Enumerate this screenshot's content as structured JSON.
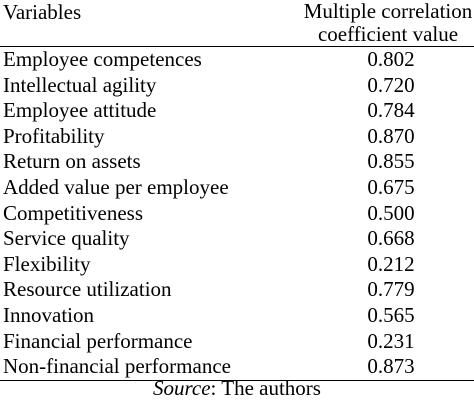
{
  "table": {
    "headers": {
      "variable": "Variables",
      "value_line1": "Multiple correlation",
      "value_line2": "coefficient value"
    },
    "rows": [
      {
        "variable": "Employee competences",
        "value": "0.802"
      },
      {
        "variable": "Intellectual agility",
        "value": "0.720"
      },
      {
        "variable": "Employee attitude",
        "value": "0.784"
      },
      {
        "variable": "Profitability",
        "value": "0.870"
      },
      {
        "variable": "Return on assets",
        "value": "0.855"
      },
      {
        "variable": "Added value per employee",
        "value": "0.675"
      },
      {
        "variable": "Competitiveness",
        "value": "0.500"
      },
      {
        "variable": "Service quality",
        "value": "0.668"
      },
      {
        "variable": "Flexibility",
        "value": "0.212"
      },
      {
        "variable": "Resource utilization",
        "value": "0.779"
      },
      {
        "variable": "Innovation",
        "value": "0.565"
      },
      {
        "variable": "Financial performance",
        "value": "0.231"
      },
      {
        "variable": "Non-financial performance",
        "value": "0.873"
      }
    ]
  },
  "source": {
    "label": "Source",
    "text": ": The authors"
  }
}
